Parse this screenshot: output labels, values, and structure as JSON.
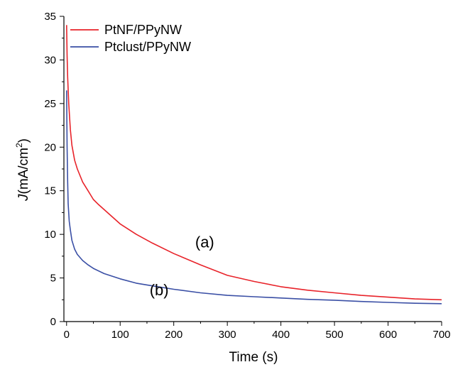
{
  "chart_data": {
    "type": "line",
    "xlabel": "Time (s)",
    "ylabel_prefix": "J",
    "ylabel_unit": "(mA/cm",
    "ylabel_exp": "2",
    "ylabel_close": ")",
    "xlim": [
      -5,
      700
    ],
    "ylim": [
      0,
      35
    ],
    "x_ticks": [
      0,
      100,
      200,
      300,
      400,
      500,
      600,
      700
    ],
    "y_ticks": [
      0,
      5,
      10,
      15,
      20,
      25,
      30,
      35
    ],
    "grid": false,
    "legend_position": "top-left",
    "series": [
      {
        "name": "PtNF/PPyNW",
        "color": "#e8232a",
        "points": [
          [
            0,
            34.0
          ],
          [
            1,
            30.5
          ],
          [
            2,
            28.0
          ],
          [
            4,
            25.0
          ],
          [
            7,
            22.0
          ],
          [
            10,
            20.2
          ],
          [
            15,
            18.5
          ],
          [
            20,
            17.5
          ],
          [
            30,
            16.0
          ],
          [
            40,
            15.0
          ],
          [
            50,
            14.0
          ],
          [
            60,
            13.4
          ],
          [
            80,
            12.3
          ],
          [
            100,
            11.2
          ],
          [
            130,
            10.0
          ],
          [
            160,
            9.0
          ],
          [
            200,
            7.8
          ],
          [
            250,
            6.5
          ],
          [
            300,
            5.3
          ],
          [
            350,
            4.6
          ],
          [
            400,
            4.0
          ],
          [
            450,
            3.6
          ],
          [
            500,
            3.3
          ],
          [
            550,
            3.0
          ],
          [
            600,
            2.8
          ],
          [
            650,
            2.6
          ],
          [
            700,
            2.5
          ]
        ]
      },
      {
        "name": "Ptclust/PPyNW",
        "color": "#3a4fa5",
        "points": [
          [
            0,
            26.5
          ],
          [
            1,
            20.0
          ],
          [
            2,
            16.0
          ],
          [
            3,
            13.5
          ],
          [
            5,
            11.5
          ],
          [
            7,
            10.5
          ],
          [
            10,
            9.3
          ],
          [
            15,
            8.3
          ],
          [
            20,
            7.7
          ],
          [
            30,
            7.0
          ],
          [
            40,
            6.5
          ],
          [
            50,
            6.1
          ],
          [
            70,
            5.5
          ],
          [
            100,
            4.9
          ],
          [
            130,
            4.4
          ],
          [
            150,
            4.2
          ],
          [
            200,
            3.7
          ],
          [
            250,
            3.3
          ],
          [
            300,
            3.0
          ],
          [
            350,
            2.85
          ],
          [
            400,
            2.7
          ],
          [
            450,
            2.55
          ],
          [
            500,
            2.45
          ],
          [
            550,
            2.3
          ],
          [
            600,
            2.2
          ],
          [
            650,
            2.1
          ],
          [
            700,
            2.05
          ]
        ]
      }
    ],
    "annotations": [
      {
        "text": "(a)",
        "x": 240,
        "y": 8.5
      },
      {
        "text": "(b)",
        "x": 155,
        "y": 3.0
      }
    ]
  }
}
